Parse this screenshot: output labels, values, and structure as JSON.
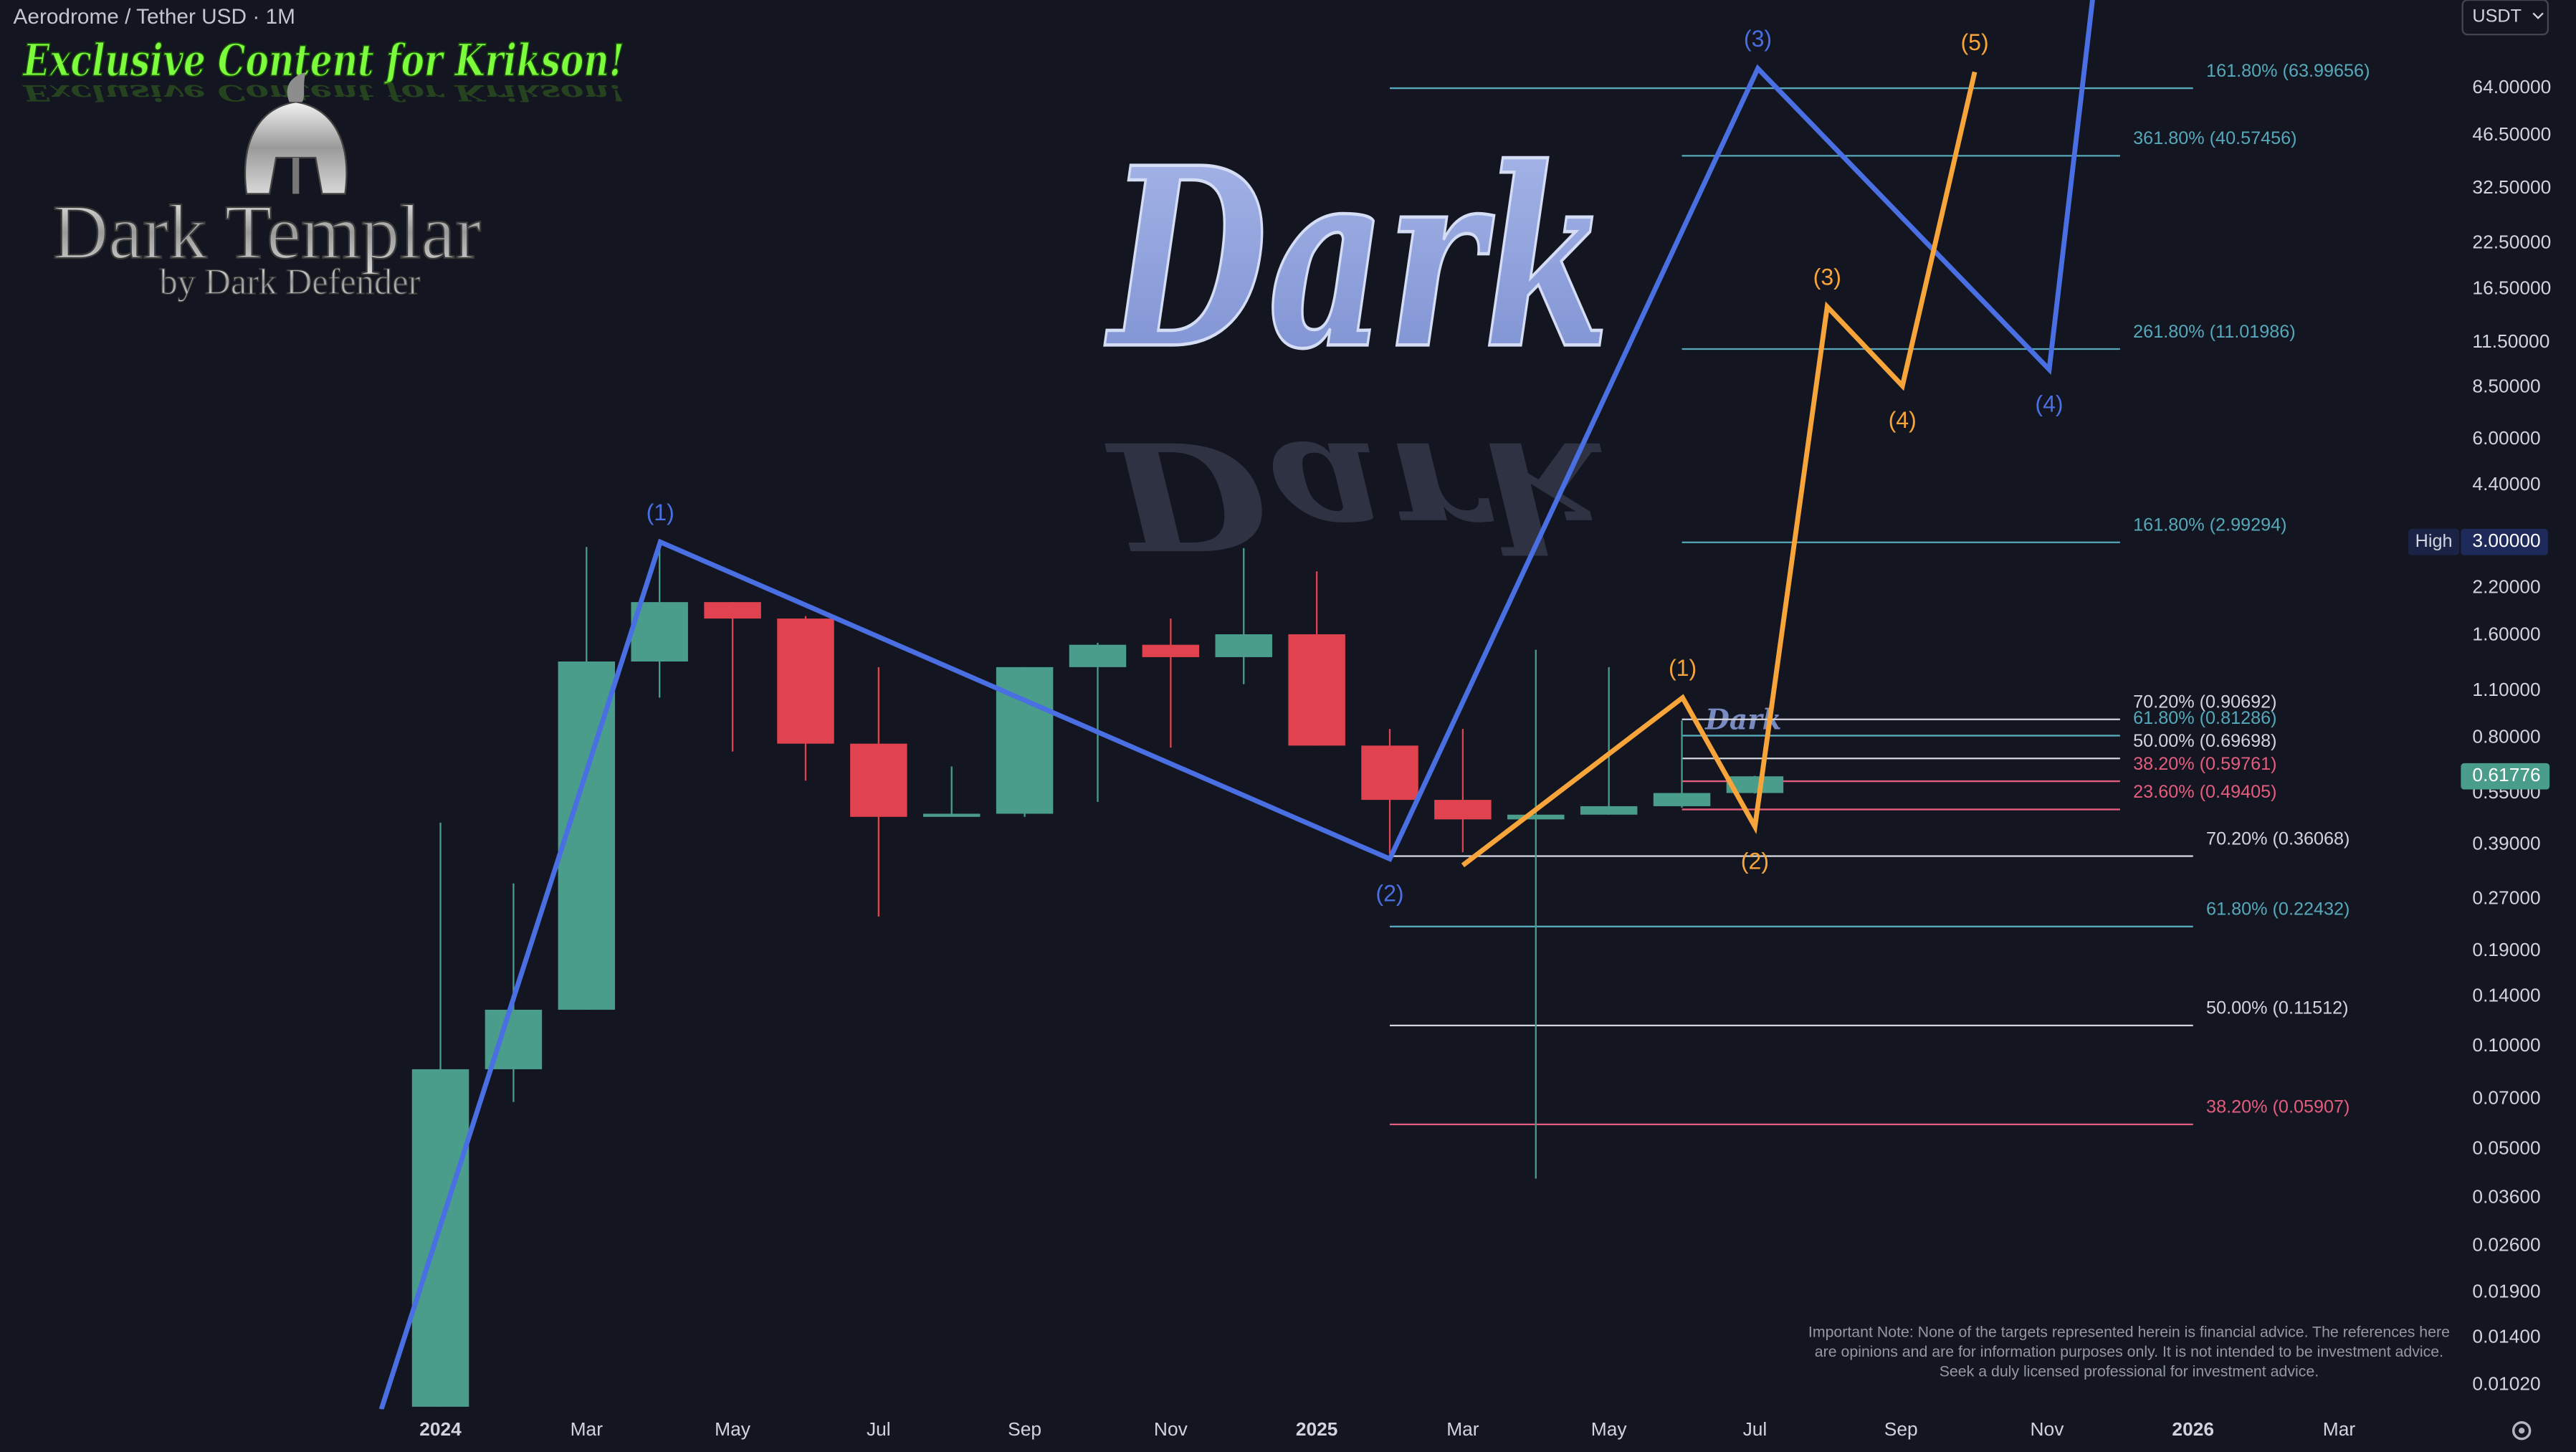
{
  "header": {
    "title": "Aerodrome / Tether USD · 1M",
    "currency": "USDT"
  },
  "branding": {
    "banner": "Exclusive Content for Krikson!",
    "logo_title": "Dark Templar",
    "logo_subtitle": "by Dark Defender",
    "watermark": "Dark"
  },
  "disclaimer": "Important Note: None of the targets represented herein is financial advice. The references here are opinions and are for information purposes only. It is not intended to be investment advice. Seek a duly licensed professional for investment advice.",
  "chart_data": {
    "type": "candlestick",
    "log_scale": true,
    "up_color": "#4a9d8b",
    "down_color": "#e0434f",
    "x": [
      0,
      1,
      2,
      3,
      4,
      5,
      6,
      7,
      8,
      9,
      10,
      11,
      12,
      13,
      14,
      15,
      16,
      17,
      18
    ],
    "open": [
      0.0088,
      0.0857,
      0.128,
      1.34,
      2.0,
      1.79,
      0.77,
      0.47,
      0.48,
      1.29,
      1.5,
      1.38,
      1.61,
      0.76,
      0.527,
      0.462,
      0.477,
      0.505,
      0.552
    ],
    "high": [
      0.452,
      0.3,
      2.9,
      3.0,
      2.0,
      1.82,
      1.29,
      0.66,
      1.29,
      1.52,
      1.79,
      2.88,
      2.46,
      0.85,
      0.85,
      1.45,
      1.29,
      0.9,
      0.62
    ],
    "low": [
      0.0088,
      0.0687,
      0.128,
      1.05,
      0.73,
      0.6,
      0.24,
      0.47,
      0.47,
      0.52,
      0.75,
      1.15,
      0.76,
      0.366,
      0.37,
      0.041,
      0.477,
      0.5,
      0.55
    ],
    "close": [
      0.0857,
      0.128,
      1.34,
      2.0,
      1.79,
      0.77,
      0.47,
      0.48,
      1.29,
      1.5,
      1.38,
      1.61,
      0.76,
      0.527,
      0.462,
      0.477,
      0.505,
      0.552,
      0.61776
    ],
    "xlim": [
      -6.03,
      27.6
    ],
    "xticks": [
      {
        "value": 0,
        "label": "2024"
      },
      {
        "value": 2,
        "label": "Mar"
      },
      {
        "value": 4,
        "label": "May"
      },
      {
        "value": 6,
        "label": "Jul"
      },
      {
        "value": 8,
        "label": "Sep"
      },
      {
        "value": 10,
        "label": "Nov"
      },
      {
        "value": 12,
        "label": "2025"
      },
      {
        "value": 14,
        "label": "Mar"
      },
      {
        "value": 16,
        "label": "May"
      },
      {
        "value": 18,
        "label": "Jul"
      },
      {
        "value": 20,
        "label": "Sep"
      },
      {
        "value": 22,
        "label": "Nov"
      },
      {
        "value": 24,
        "label": "2026"
      },
      {
        "value": 26,
        "label": "Mar"
      }
    ],
    "ylim": [
      0.00865,
      116
    ],
    "yticks": [
      {
        "value": 64,
        "label": "64.00000"
      },
      {
        "value": 46.5,
        "label": "46.50000"
      },
      {
        "value": 32.5,
        "label": "32.50000"
      },
      {
        "value": 22.5,
        "label": "22.50000"
      },
      {
        "value": 16.5,
        "label": "16.50000"
      },
      {
        "value": 11.5,
        "label": "11.50000"
      },
      {
        "value": 8.5,
        "label": "8.50000"
      },
      {
        "value": 6,
        "label": "6.00000"
      },
      {
        "value": 4.4,
        "label": "4.40000"
      },
      {
        "value": 2.2,
        "label": "2.20000"
      },
      {
        "value": 1.6,
        "label": "1.60000"
      },
      {
        "value": 1.1,
        "label": "1.10000"
      },
      {
        "value": 0.8,
        "label": "0.80000"
      },
      {
        "value": 0.55,
        "label": "0.55000"
      },
      {
        "value": 0.39,
        "label": "0.39000"
      },
      {
        "value": 0.27,
        "label": "0.27000"
      },
      {
        "value": 0.19,
        "label": "0.19000"
      },
      {
        "value": 0.14,
        "label": "0.14000"
      },
      {
        "value": 0.1,
        "label": "0.10000"
      },
      {
        "value": 0.07,
        "label": "0.07000"
      },
      {
        "value": 0.05,
        "label": "0.05000"
      },
      {
        "value": 0.036,
        "label": "0.03600"
      },
      {
        "value": 0.026,
        "label": "0.02600"
      },
      {
        "value": 0.019,
        "label": "0.01900"
      },
      {
        "value": 0.014,
        "label": "0.01400"
      },
      {
        "value": 0.0102,
        "label": "0.01020"
      }
    ],
    "high_marker": {
      "label": "High",
      "value": 3,
      "value_label": "3.00000"
    },
    "last_price": {
      "value": 0.61776,
      "value_label": "0.61776",
      "color": "#4a9d8b"
    },
    "waves": [
      {
        "color": "#4a6fe3",
        "x": [
          -0.81,
          3.01,
          13.0,
          18.04,
          22.03,
          22.65
        ],
        "y": [
          0.00865,
          3.0,
          0.354,
          73.1,
          9.6,
          130
        ],
        "labels": [
          null,
          "(1)",
          "(2)",
          "(3)",
          "(4)",
          null
        ]
      },
      {
        "color": "#f7a43a",
        "x": [
          14.0,
          17.01,
          18.0,
          18.99,
          20.02,
          21.01
        ],
        "y": [
          0.339,
          1.05,
          0.44,
          14.66,
          8.6,
          71.4
        ],
        "labels": [
          null,
          "(1)",
          "(2)",
          "(3)",
          "(4)",
          "(5)"
        ]
      }
    ],
    "fib_levels": [
      {
        "label": "161.80% (63.99656)",
        "value": 63.99656,
        "color": "#56a8ba",
        "x_start": 13,
        "x_end": 24
      },
      {
        "label": "361.80% (40.57456)",
        "value": 40.57456,
        "color": "#56a8ba",
        "x_start": 17,
        "x_end": 23
      },
      {
        "label": "261.80% (11.01986)",
        "value": 11.01986,
        "color": "#56a8ba",
        "x_start": 17,
        "x_end": 23
      },
      {
        "label": "161.80% (2.99294)",
        "value": 2.99294,
        "color": "#56a8ba",
        "x_start": 17,
        "x_end": 23
      },
      {
        "label": "70.20% (0.90692)",
        "value": 0.90692,
        "color": "#d1d4dc",
        "x_start": 17,
        "x_end": 23
      },
      {
        "label": "61.80% (0.81286)",
        "value": 0.81286,
        "color": "#56a8ba",
        "x_start": 17,
        "x_end": 23
      },
      {
        "label": "50.00% (0.69698)",
        "value": 0.69698,
        "color": "#d1d4dc",
        "x_start": 17,
        "x_end": 23
      },
      {
        "label": "38.20% (0.59761)",
        "value": 0.59761,
        "color": "#e45c7e",
        "x_start": 17,
        "x_end": 23
      },
      {
        "label": "23.60% (0.49405)",
        "value": 0.49405,
        "color": "#e45c7e",
        "x_start": 17,
        "x_end": 23
      },
      {
        "label": "70.20% (0.36068)",
        "value": 0.36068,
        "color": "#d1d4dc",
        "x_start": 13,
        "x_end": 24
      },
      {
        "label": "61.80% (0.22432)",
        "value": 0.22432,
        "color": "#56a8ba",
        "x_start": 13,
        "x_end": 24
      },
      {
        "label": "50.00% (0.11512)",
        "value": 0.11512,
        "color": "#d1d4dc",
        "x_start": 13,
        "x_end": 24
      },
      {
        "label": "38.20% (0.05907)",
        "value": 0.05907,
        "color": "#e45c7e",
        "x_start": 13,
        "x_end": 24
      }
    ]
  }
}
